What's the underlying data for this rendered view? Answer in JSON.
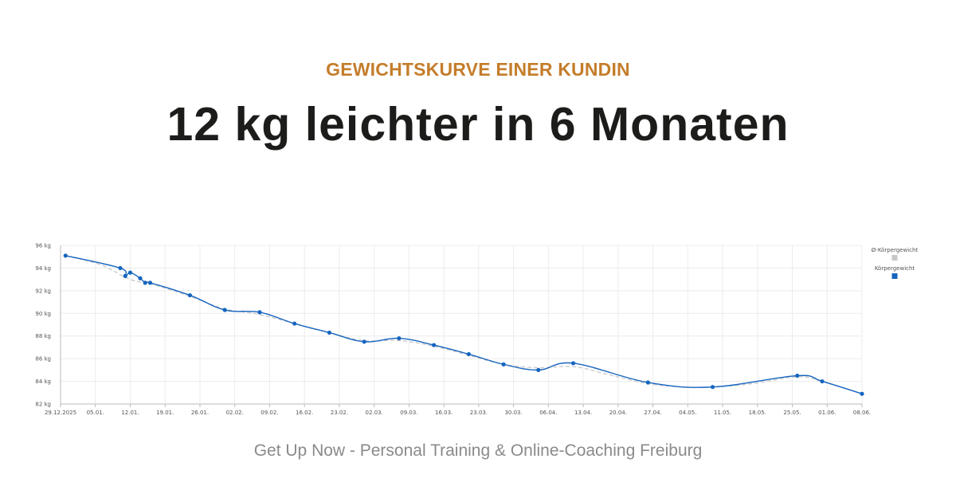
{
  "header": {
    "eyebrow": "GEWICHTSKURVE EINER KUNDIN",
    "headline": "12 kg leichter in 6 Monaten"
  },
  "footer": {
    "text": "Get Up Now - Personal Training & Online-Coaching Freiburg"
  },
  "colors": {
    "accent": "#c47d2b",
    "headline": "#1c1c1a",
    "series_weight": "#1565c0",
    "series_avg": "#c8c8c8",
    "grid": "#ececec"
  },
  "chart_data": {
    "type": "line",
    "x_unit": "days since 29.12.2025",
    "xlim": [
      0,
      161
    ],
    "ylim": [
      82,
      96
    ],
    "y_ticks": [
      82,
      84,
      86,
      88,
      90,
      92,
      94,
      96
    ],
    "y_tick_labels": [
      "82 kg",
      "84 kg",
      "86 kg",
      "88 kg",
      "90 kg",
      "92 kg",
      "94 kg",
      "96 kg"
    ],
    "x_ticks": [
      0,
      7,
      14,
      21,
      28,
      35,
      42,
      49,
      56,
      63,
      70,
      77,
      84,
      91,
      98,
      105,
      112,
      119,
      126,
      133,
      140,
      147,
      154,
      161
    ],
    "x_tick_labels": [
      "29.12.2025",
      "05.01.",
      "12.01.",
      "19.01.",
      "26.01.",
      "02.02.",
      "09.02.",
      "16.02.",
      "23.02.",
      "02.03.",
      "09.03.",
      "16.03.",
      "23.03.",
      "30.03.",
      "06.04.",
      "13.04.",
      "20.04.",
      "27.04.",
      "04.05.",
      "11.05.",
      "18.05.",
      "25.05.",
      "01.06.",
      "08.06."
    ],
    "grid": true,
    "legend_position": "right",
    "legend": [
      "Ø-Körpergewicht",
      "Körpergewicht"
    ],
    "series": [
      {
        "name": "Körpergewicht",
        "color": "#1565c0",
        "style": "solid-with-markers",
        "x": [
          1,
          12,
          13,
          14,
          16,
          17,
          18,
          26,
          33,
          40,
          47,
          54,
          61,
          68,
          75,
          82,
          89,
          96,
          103,
          118,
          131,
          148,
          153,
          161
        ],
        "y": [
          95.1,
          94.0,
          93.3,
          93.6,
          93.1,
          92.7,
          92.7,
          91.6,
          90.3,
          90.1,
          89.1,
          88.3,
          87.5,
          87.8,
          87.2,
          86.4,
          85.5,
          85.0,
          85.6,
          83.9,
          83.5,
          84.5,
          84.0,
          82.9
        ]
      },
      {
        "name": "Ø-Körpergewicht",
        "color": "#c8c8c8",
        "style": "dashed",
        "x": [
          1,
          8,
          14,
          19,
          26,
          33,
          40,
          47,
          54,
          61,
          68,
          75,
          82,
          89,
          96,
          103,
          110,
          118,
          125,
          131,
          139,
          148,
          153,
          161
        ],
        "y": [
          95.1,
          94.3,
          93.0,
          92.5,
          91.5,
          90.4,
          89.9,
          89.1,
          88.3,
          87.6,
          87.6,
          87.1,
          86.3,
          85.5,
          85.2,
          85.3,
          84.6,
          83.8,
          83.5,
          83.5,
          83.8,
          84.4,
          84.0,
          82.9
        ]
      }
    ]
  }
}
